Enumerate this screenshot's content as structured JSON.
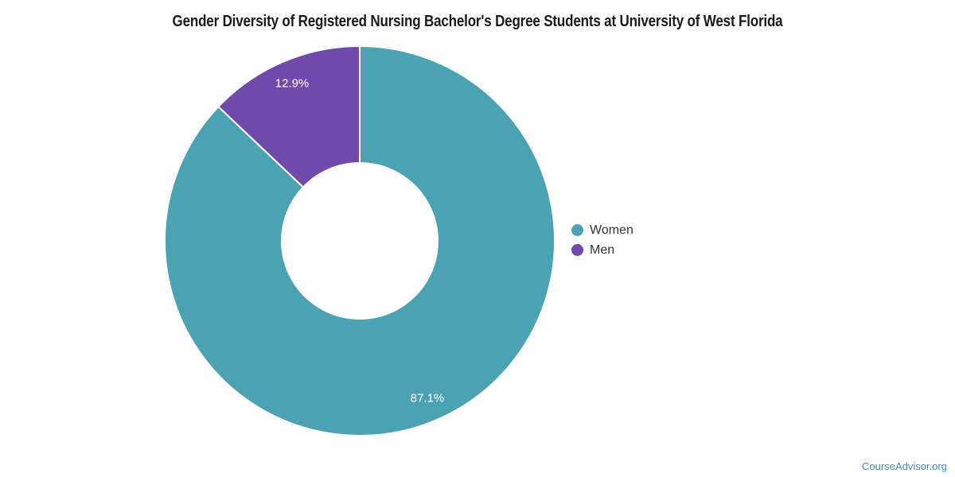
{
  "chart_data": {
    "type": "pie",
    "title": "Gender Diversity of Registered Nursing Bachelor's Degree Students at University of West Florida",
    "donut": true,
    "direction": "clockwise",
    "start_angle_deg": 0,
    "legend_position": "right",
    "background_color": "#ffffff",
    "data_label_color": "#ffffff",
    "slice_border_color": "#ffffff",
    "slices": [
      {
        "name": "Women",
        "value": 87.1,
        "label": "87.1%",
        "color": "#4aa2b2"
      },
      {
        "name": "Men",
        "value": 12.9,
        "label": "12.9%",
        "color": "#7148ab"
      }
    ]
  },
  "footer": {
    "attribution": "CourseAdvisor.org",
    "link_color": "#4a8ab0"
  }
}
